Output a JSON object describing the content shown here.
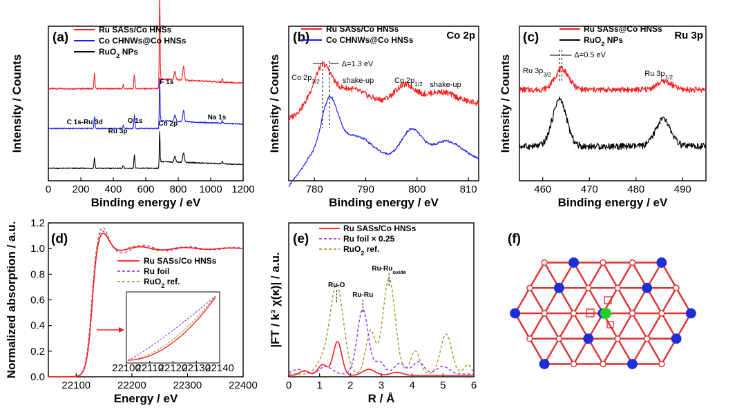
{
  "colors": {
    "red": "#ff1a1a",
    "blue": "#1a1aff",
    "black": "#000000",
    "purple": "#9a33ff",
    "olive": "#a89a2e",
    "lattice_red": "#e03030",
    "lattice_blue": "#1f2fd8",
    "green": "#22d022"
  },
  "chart_data": [
    {
      "panel": "(a)",
      "type": "line",
      "xlabel": "Binding energy / eV",
      "ylabel": "Intensity / Counts",
      "xlim": [
        0,
        1200
      ],
      "xticks": [
        0,
        200,
        400,
        600,
        800,
        1000,
        1200
      ],
      "legend_position": "top",
      "series": [
        {
          "name": "Ru SASs/Co HNSs",
          "color": "red",
          "baseline": 0.58
        },
        {
          "name": "Co CHNWs@Co HNSs",
          "color": "blue",
          "baseline": 0.3
        },
        {
          "name": "RuO2 NPs",
          "name_display": "RuO",
          "name_sub": "2",
          "name_tail": " NPs",
          "color": "black",
          "baseline": 0.02
        }
      ],
      "peaks": [
        {
          "label": "C 1s-Ru 3d",
          "x": 284
        },
        {
          "label": "Ru 3p",
          "x": 462
        },
        {
          "label": "O 1s",
          "x": 530
        },
        {
          "label": "F 1s",
          "x": 686
        },
        {
          "label": "Co 2p",
          "x": 780
        },
        {
          "label": "Na 1s",
          "x": 1072
        }
      ]
    },
    {
      "panel": "(b)",
      "type": "line",
      "header": "Co 2p",
      "xlabel": "Binding energy / eV",
      "ylabel": "Intensity / Counts",
      "xlim": [
        775,
        812
      ],
      "xticks": [
        780,
        790,
        800,
        810
      ],
      "legend_position": "top",
      "series": [
        {
          "name": "Ru SASs/Co HNSs",
          "color": "red"
        },
        {
          "name": "Co CHNWs@Co HNSs",
          "color": "blue"
        }
      ],
      "annotations": [
        {
          "label": "Co 2p",
          "sub": "3/2",
          "x": 781.6
        },
        {
          "label": "shake-up",
          "x": 788
        },
        {
          "label": "Co 2p",
          "sub": "1/2",
          "x": 798
        },
        {
          "label": "shake-up",
          "x": 805
        },
        {
          "label": "Δ=1.3 eV",
          "x": 782.3
        }
      ],
      "dashed_lines_x": [
        781.6,
        782.9
      ]
    },
    {
      "panel": "(c)",
      "type": "line",
      "header": "Ru 3p",
      "xlabel": "Binding energy / eV",
      "ylabel": "Intensity / Counts",
      "xlim": [
        455,
        495
      ],
      "xticks": [
        460,
        470,
        480,
        490
      ],
      "legend_position": "top",
      "series": [
        {
          "name": "Ru SASs@Co HNSs",
          "color": "red"
        },
        {
          "name": "RuO2 NPs",
          "name_display": "RuO",
          "name_sub": "2",
          "name_tail": " NPs",
          "color": "black"
        }
      ],
      "annotations": [
        {
          "label": "Ru 3p",
          "sub": "3/2",
          "x": 463.5
        },
        {
          "label": "Ru 3p",
          "sub": "1/2",
          "x": 486
        },
        {
          "label": "Δ=0.5 eV",
          "x": 464
        }
      ],
      "dashed_lines_x": [
        463.6,
        464.1
      ]
    },
    {
      "panel": "(d)",
      "type": "line",
      "xlabel": "Energy / eV",
      "ylabel": "Normalized absorption / a.u.",
      "xlim": [
        22050,
        22400
      ],
      "ylim": [
        0,
        1.2
      ],
      "xticks": [
        22100,
        22200,
        22300,
        22400
      ],
      "yticks": [
        0.0,
        0.2,
        0.4,
        0.6,
        0.8,
        1.0,
        1.2
      ],
      "legend_position": "right",
      "series": [
        {
          "name": "Ru SASs/Co HNSs",
          "color": "red",
          "style": "solid"
        },
        {
          "name": "Ru foil",
          "color": "purple",
          "style": "dashed"
        },
        {
          "name": "RuO2 ref.",
          "name_display": "RuO",
          "name_sub": "2",
          "name_tail": " ref.",
          "color": "olive",
          "style": "dashed"
        }
      ],
      "inset": {
        "xlim": [
          22100,
          22140
        ],
        "xticks": [
          22100,
          22110,
          22120,
          22130,
          22140
        ]
      }
    },
    {
      "panel": "(e)",
      "type": "line",
      "xlabel": "R / Å",
      "ylabel": "|FT / k³ χ(κ)| / a.u.",
      "xlim": [
        0,
        6
      ],
      "xticks": [
        0,
        1,
        2,
        3,
        4,
        5,
        6
      ],
      "legend_position": "top",
      "series": [
        {
          "name": "Ru SASs/Co HNSs",
          "color": "red",
          "style": "solid"
        },
        {
          "name": "Ru foil × 0.25",
          "color": "purple",
          "style": "dashed"
        },
        {
          "name": "RuO2 ref.",
          "name_display": "RuO",
          "name_sub": "2",
          "name_tail": " ref.",
          "color": "olive",
          "style": "dashed"
        }
      ],
      "annotations": [
        {
          "label": "Ru-O",
          "x": 1.55
        },
        {
          "label": "Ru-Ru",
          "x": 2.4
        },
        {
          "label": "Ru-Ru",
          "sub": "oxide",
          "x": 3.25
        }
      ]
    },
    {
      "panel": "(f)",
      "type": "diagram",
      "description_free": true
    }
  ]
}
